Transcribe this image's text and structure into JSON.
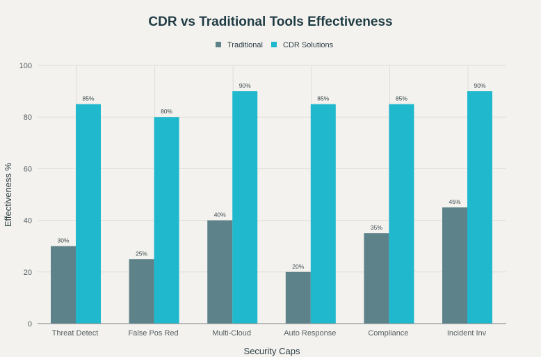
{
  "chart_data": {
    "type": "bar",
    "title": "CDR vs Traditional Tools Effectiveness",
    "xlabel": "Security Caps",
    "ylabel": "Effectiveness %",
    "ylim": [
      0,
      100
    ],
    "yticks": [
      0,
      20,
      40,
      60,
      80,
      100
    ],
    "grid": true,
    "legend_position": "top-center",
    "categories": [
      "Threat Detect",
      "False Pos Red",
      "Multi-Cloud",
      "Auto Response",
      "Compliance",
      "Incident Inv"
    ],
    "series": [
      {
        "name": "Traditional",
        "color": "#5e828a",
        "values": [
          30,
          25,
          40,
          20,
          35,
          45
        ]
      },
      {
        "name": "CDR Solutions",
        "color": "#1fb8cd",
        "values": [
          85,
          80,
          90,
          85,
          85,
          90
        ]
      }
    ],
    "value_label_suffix": "%"
  }
}
